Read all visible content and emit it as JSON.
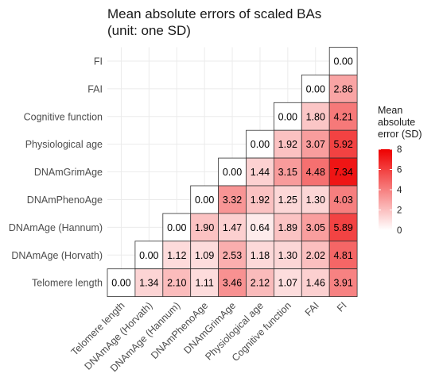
{
  "chart_data": {
    "type": "heatmap",
    "title": "Mean absolute errors of scaled BAs",
    "subtitle": "(unit: one SD)",
    "xlabel": "",
    "ylabel": "",
    "row_labels_top_to_bottom": [
      "FI",
      "FAI",
      "Cognitive function",
      "Physiological age",
      "DNAmGrimAge",
      "DNAmPhenoAge",
      "DNAmAge (Hannum)",
      "DNAmAge (Horvath)",
      "Telomere length"
    ],
    "column_labels": [
      "Telomere length",
      "DNAmAge (Horvath)",
      "DNAmAge (Hannum)",
      "DNAmPhenoAge",
      "DNAmGrimAge",
      "Physiological age",
      "Cognitive function",
      "FAI",
      "FI"
    ],
    "cells": [
      {
        "row": "FI",
        "col": "FI",
        "value": 0.0,
        "label": "0.00"
      },
      {
        "row": "FAI",
        "col": "FAI",
        "value": 0.0,
        "label": "0.00"
      },
      {
        "row": "FAI",
        "col": "FI",
        "value": 2.86,
        "label": "2.86"
      },
      {
        "row": "Cognitive function",
        "col": "Cognitive function",
        "value": 0.0,
        "label": "0.00"
      },
      {
        "row": "Cognitive function",
        "col": "FAI",
        "value": 1.8,
        "label": "1.80"
      },
      {
        "row": "Cognitive function",
        "col": "FI",
        "value": 4.21,
        "label": "4.21"
      },
      {
        "row": "Physiological age",
        "col": "Physiological age",
        "value": 0.0,
        "label": "0.00"
      },
      {
        "row": "Physiological age",
        "col": "Cognitive function",
        "value": 1.92,
        "label": "1.92"
      },
      {
        "row": "Physiological age",
        "col": "FAI",
        "value": 3.07,
        "label": "3.07"
      },
      {
        "row": "Physiological age",
        "col": "FI",
        "value": 5.92,
        "label": "5.92"
      },
      {
        "row": "DNAmGrimAge",
        "col": "DNAmGrimAge",
        "value": 0.0,
        "label": "0.00"
      },
      {
        "row": "DNAmGrimAge",
        "col": "Physiological age",
        "value": 1.44,
        "label": "1.44"
      },
      {
        "row": "DNAmGrimAge",
        "col": "Cognitive function",
        "value": 3.15,
        "label": "3.15"
      },
      {
        "row": "DNAmGrimAge",
        "col": "FAI",
        "value": 4.48,
        "label": "4.48"
      },
      {
        "row": "DNAmGrimAge",
        "col": "FI",
        "value": 7.34,
        "label": "7.34"
      },
      {
        "row": "DNAmPhenoAge",
        "col": "DNAmPhenoAge",
        "value": 0.0,
        "label": "0.00"
      },
      {
        "row": "DNAmPhenoAge",
        "col": "DNAmGrimAge",
        "value": 3.32,
        "label": "3.32"
      },
      {
        "row": "DNAmPhenoAge",
        "col": "Physiological age",
        "value": 1.92,
        "label": "1.92"
      },
      {
        "row": "DNAmPhenoAge",
        "col": "Cognitive function",
        "value": 1.25,
        "label": "1.25"
      },
      {
        "row": "DNAmPhenoAge",
        "col": "FAI",
        "value": 1.3,
        "label": "1.30"
      },
      {
        "row": "DNAmPhenoAge",
        "col": "FI",
        "value": 4.03,
        "label": "4.03"
      },
      {
        "row": "DNAmAge (Hannum)",
        "col": "DNAmAge (Hannum)",
        "value": 0.0,
        "label": "0.00"
      },
      {
        "row": "DNAmAge (Hannum)",
        "col": "DNAmPhenoAge",
        "value": 1.9,
        "label": "1.90"
      },
      {
        "row": "DNAmAge (Hannum)",
        "col": "DNAmGrimAge",
        "value": 1.47,
        "label": "1.47"
      },
      {
        "row": "DNAmAge (Hannum)",
        "col": "Physiological age",
        "value": 0.64,
        "label": "0.64"
      },
      {
        "row": "DNAmAge (Hannum)",
        "col": "Cognitive function",
        "value": 1.89,
        "label": "1.89"
      },
      {
        "row": "DNAmAge (Hannum)",
        "col": "FAI",
        "value": 3.05,
        "label": "3.05"
      },
      {
        "row": "DNAmAge (Hannum)",
        "col": "FI",
        "value": 5.89,
        "label": "5.89"
      },
      {
        "row": "DNAmAge (Horvath)",
        "col": "DNAmAge (Horvath)",
        "value": 0.0,
        "label": "0.00"
      },
      {
        "row": "DNAmAge (Horvath)",
        "col": "DNAmAge (Hannum)",
        "value": 1.12,
        "label": "1.12"
      },
      {
        "row": "DNAmAge (Horvath)",
        "col": "DNAmPhenoAge",
        "value": 1.09,
        "label": "1.09"
      },
      {
        "row": "DNAmAge (Horvath)",
        "col": "DNAmGrimAge",
        "value": 2.53,
        "label": "2.53"
      },
      {
        "row": "DNAmAge (Horvath)",
        "col": "Physiological age",
        "value": 1.18,
        "label": "1.18"
      },
      {
        "row": "DNAmAge (Horvath)",
        "col": "Cognitive function",
        "value": 1.3,
        "label": "1.30"
      },
      {
        "row": "DNAmAge (Horvath)",
        "col": "FAI",
        "value": 2.02,
        "label": "2.02"
      },
      {
        "row": "DNAmAge (Horvath)",
        "col": "FI",
        "value": 4.81,
        "label": "4.81"
      },
      {
        "row": "Telomere length",
        "col": "Telomere length",
        "value": 0.0,
        "label": "0.00"
      },
      {
        "row": "Telomere length",
        "col": "DNAmAge (Horvath)",
        "value": 1.34,
        "label": "1.34"
      },
      {
        "row": "Telomere length",
        "col": "DNAmAge (Hannum)",
        "value": 2.1,
        "label": "2.10"
      },
      {
        "row": "Telomere length",
        "col": "DNAmPhenoAge",
        "value": 1.11,
        "label": "1.11"
      },
      {
        "row": "Telomere length",
        "col": "DNAmGrimAge",
        "value": 3.46,
        "label": "3.46"
      },
      {
        "row": "Telomere length",
        "col": "Physiological age",
        "value": 2.12,
        "label": "2.12"
      },
      {
        "row": "Telomere length",
        "col": "Cognitive function",
        "value": 1.07,
        "label": "1.07"
      },
      {
        "row": "Telomere length",
        "col": "FAI",
        "value": 1.46,
        "label": "1.46"
      },
      {
        "row": "Telomere length",
        "col": "FI",
        "value": 3.91,
        "label": "3.91"
      }
    ],
    "color_scale": {
      "low": "#ffffff",
      "high": "#ee0000",
      "limits": [
        0,
        8
      ]
    },
    "legend": {
      "title_lines": [
        "Mean",
        "absolute",
        "error (SD)"
      ],
      "ticks": [
        0,
        2,
        4,
        6,
        8
      ],
      "placement": "right"
    },
    "grid": true
  }
}
